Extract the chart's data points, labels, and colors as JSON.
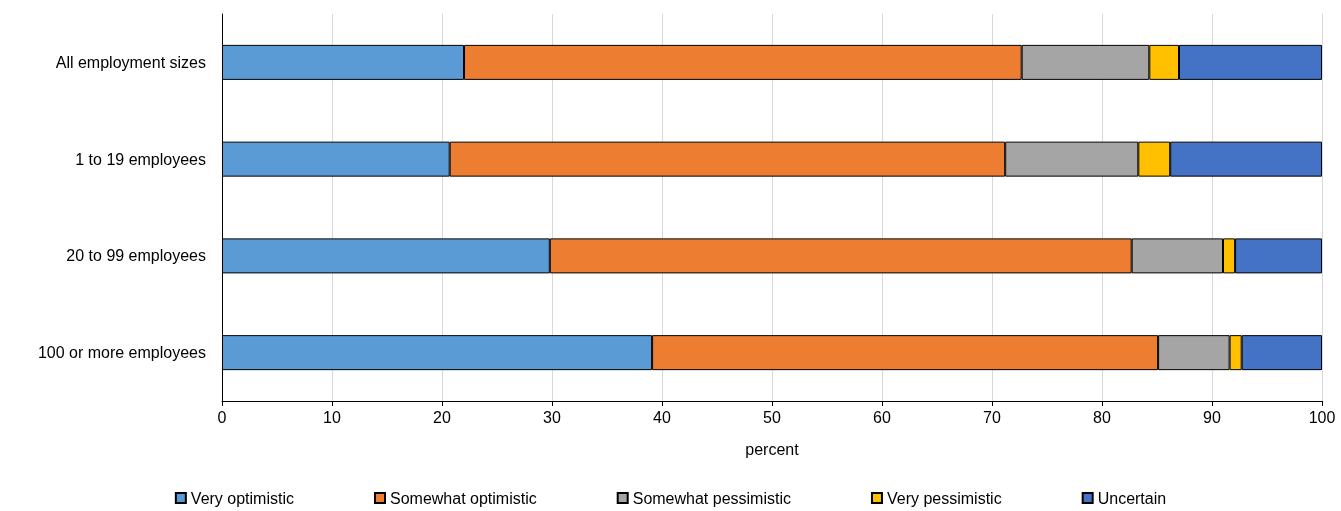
{
  "chart_data": {
    "type": "bar",
    "orientation": "horizontal",
    "stacked": true,
    "xlabel": "percent",
    "categories": [
      "All employment sizes",
      "1 to 19 employees",
      "20 to 99 employees",
      "100 or more employees"
    ],
    "series": [
      {
        "name": "Very optimistic",
        "color": "#5b9bd5",
        "values": [
          22.0,
          20.7,
          29.8,
          39.1
        ]
      },
      {
        "name": "Somewhat optimistic",
        "color": "#ed7d31",
        "values": [
          50.7,
          50.5,
          52.9,
          46.0
        ]
      },
      {
        "name": "Somewhat pessimistic",
        "color": "#a5a5a5",
        "values": [
          11.6,
          12.1,
          8.3,
          6.5
        ]
      },
      {
        "name": "Very pessimistic",
        "color": "#ffc000",
        "values": [
          2.7,
          2.9,
          1.1,
          1.1
        ]
      },
      {
        "name": "Uncertain",
        "color": "#4472c4",
        "values": [
          13.0,
          13.8,
          7.9,
          7.3
        ]
      }
    ],
    "xlim": [
      0,
      100
    ],
    "xticks": [
      0,
      10,
      20,
      30,
      40,
      50,
      60,
      70,
      80,
      90,
      100
    ],
    "grid": "x",
    "legend": "bottom"
  }
}
